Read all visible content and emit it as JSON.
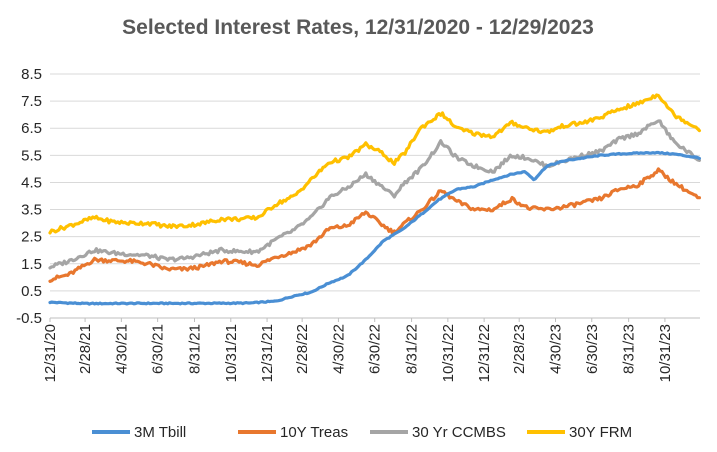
{
  "colors": {
    "3M Tbill": "#4a8fd4",
    "10Y Treas": "#e8772e",
    "30 Yr CCMBS": "#a5a5a5",
    "30Y FRM": "#ffc000"
  },
  "chart_data": {
    "type": "line",
    "title": "Selected Interest Rates, 12/31/2020 - 12/29/2023",
    "xlabel": "",
    "ylabel": "",
    "ylim": [
      -0.5,
      8.5
    ],
    "yticks": [
      "8.5",
      "7.5",
      "6.5",
      "5.5",
      "4.5",
      "3.5",
      "2.5",
      "1.5",
      "0.5",
      "-0.5"
    ],
    "xticks": [
      "12/31/20",
      "2/28/21",
      "4/30/21",
      "6/30/21",
      "8/31/21",
      "10/31/21",
      "12/31/21",
      "2/28/22",
      "4/30/22",
      "6/30/22",
      "8/31/22",
      "10/31/22",
      "12/31/22",
      "2/28/23",
      "4/30/23",
      "6/30/23",
      "8/31/23",
      "10/31/23"
    ],
    "x_range": [
      "2020-12-31",
      "2023-12-29"
    ],
    "grid": true,
    "legend": "bottom",
    "series": [
      {
        "name": "3M Tbill",
        "points": [
          [
            "2020-12-31",
            0.08
          ],
          [
            "2021-03-01",
            0.03
          ],
          [
            "2021-06-01",
            0.04
          ],
          [
            "2021-09-01",
            0.04
          ],
          [
            "2021-12-01",
            0.05
          ],
          [
            "2022-01-15",
            0.12
          ],
          [
            "2022-02-15",
            0.32
          ],
          [
            "2022-03-15",
            0.45
          ],
          [
            "2022-04-15",
            0.8
          ],
          [
            "2022-05-15",
            1.05
          ],
          [
            "2022-06-15",
            1.65
          ],
          [
            "2022-07-15",
            2.35
          ],
          [
            "2022-08-15",
            2.75
          ],
          [
            "2022-09-15",
            3.3
          ],
          [
            "2022-10-15",
            3.85
          ],
          [
            "2022-11-15",
            4.25
          ],
          [
            "2022-12-15",
            4.35
          ],
          [
            "2023-01-15",
            4.6
          ],
          [
            "2023-02-15",
            4.8
          ],
          [
            "2023-03-10",
            4.9
          ],
          [
            "2023-03-25",
            4.6
          ],
          [
            "2023-04-15",
            5.1
          ],
          [
            "2023-05-15",
            5.3
          ],
          [
            "2023-06-15",
            5.4
          ],
          [
            "2023-07-15",
            5.5
          ],
          [
            "2023-08-15",
            5.55
          ],
          [
            "2023-09-15",
            5.58
          ],
          [
            "2023-10-15",
            5.6
          ],
          [
            "2023-11-15",
            5.55
          ],
          [
            "2023-12-29",
            5.4
          ]
        ]
      },
      {
        "name": "10Y Treas",
        "points": [
          [
            "2020-12-31",
            0.92
          ],
          [
            "2021-02-01",
            1.1
          ],
          [
            "2021-03-15",
            1.65
          ],
          [
            "2021-04-15",
            1.62
          ],
          [
            "2021-05-15",
            1.6
          ],
          [
            "2021-06-15",
            1.5
          ],
          [
            "2021-07-15",
            1.3
          ],
          [
            "2021-08-15",
            1.3
          ],
          [
            "2021-09-15",
            1.4
          ],
          [
            "2021-10-15",
            1.6
          ],
          [
            "2021-11-15",
            1.55
          ],
          [
            "2021-12-15",
            1.45
          ],
          [
            "2022-01-15",
            1.75
          ],
          [
            "2022-02-15",
            1.95
          ],
          [
            "2022-03-15",
            2.2
          ],
          [
            "2022-04-15",
            2.8
          ],
          [
            "2022-05-15",
            2.9
          ],
          [
            "2022-06-15",
            3.4
          ],
          [
            "2022-07-15",
            2.9
          ],
          [
            "2022-08-01",
            2.65
          ],
          [
            "2022-08-20",
            3.0
          ],
          [
            "2022-09-15",
            3.45
          ],
          [
            "2022-10-20",
            4.2
          ],
          [
            "2022-11-15",
            3.8
          ],
          [
            "2022-12-15",
            3.5
          ],
          [
            "2023-01-15",
            3.5
          ],
          [
            "2023-02-15",
            3.9
          ],
          [
            "2023-03-15",
            3.55
          ],
          [
            "2023-04-15",
            3.5
          ],
          [
            "2023-05-15",
            3.6
          ],
          [
            "2023-06-15",
            3.75
          ],
          [
            "2023-07-15",
            3.9
          ],
          [
            "2023-08-15",
            4.25
          ],
          [
            "2023-09-15",
            4.4
          ],
          [
            "2023-10-20",
            4.95
          ],
          [
            "2023-11-15",
            4.5
          ],
          [
            "2023-12-29",
            3.88
          ]
        ]
      },
      {
        "name": "30 Yr CCMBS",
        "points": [
          [
            "2020-12-31",
            1.38
          ],
          [
            "2021-02-01",
            1.6
          ],
          [
            "2021-03-15",
            2.0
          ],
          [
            "2021-04-15",
            1.9
          ],
          [
            "2021-05-15",
            1.85
          ],
          [
            "2021-06-15",
            1.8
          ],
          [
            "2021-07-15",
            1.65
          ],
          [
            "2021-08-15",
            1.7
          ],
          [
            "2021-09-15",
            1.85
          ],
          [
            "2021-10-15",
            2.0
          ],
          [
            "2021-11-15",
            1.95
          ],
          [
            "2021-12-15",
            1.95
          ],
          [
            "2022-01-15",
            2.4
          ],
          [
            "2022-02-15",
            2.75
          ],
          [
            "2022-03-15",
            3.2
          ],
          [
            "2022-04-15",
            3.95
          ],
          [
            "2022-05-15",
            4.3
          ],
          [
            "2022-06-15",
            4.8
          ],
          [
            "2022-07-15",
            4.3
          ],
          [
            "2022-08-01",
            4.0
          ],
          [
            "2022-08-20",
            4.5
          ],
          [
            "2022-09-15",
            5.0
          ],
          [
            "2022-10-20",
            6.0
          ],
          [
            "2022-11-15",
            5.4
          ],
          [
            "2022-12-15",
            5.1
          ],
          [
            "2023-01-15",
            4.9
          ],
          [
            "2023-02-15",
            5.5
          ],
          [
            "2023-03-15",
            5.4
          ],
          [
            "2023-04-15",
            5.1
          ],
          [
            "2023-05-15",
            5.3
          ],
          [
            "2023-06-15",
            5.5
          ],
          [
            "2023-07-15",
            5.65
          ],
          [
            "2023-08-15",
            6.1
          ],
          [
            "2023-09-15",
            6.3
          ],
          [
            "2023-10-20",
            6.8
          ],
          [
            "2023-11-15",
            6.0
          ],
          [
            "2023-12-29",
            5.3
          ]
        ]
      },
      {
        "name": "30Y FRM",
        "points": [
          [
            "2020-12-31",
            2.68
          ],
          [
            "2021-02-01",
            2.9
          ],
          [
            "2021-03-15",
            3.2
          ],
          [
            "2021-04-15",
            3.05
          ],
          [
            "2021-05-15",
            3.0
          ],
          [
            "2021-06-15",
            3.0
          ],
          [
            "2021-07-15",
            2.88
          ],
          [
            "2021-08-15",
            2.9
          ],
          [
            "2021-09-15",
            3.0
          ],
          [
            "2021-10-15",
            3.15
          ],
          [
            "2021-11-15",
            3.15
          ],
          [
            "2021-12-15",
            3.2
          ],
          [
            "2022-01-15",
            3.7
          ],
          [
            "2022-02-15",
            4.0
          ],
          [
            "2022-03-15",
            4.6
          ],
          [
            "2022-04-15",
            5.25
          ],
          [
            "2022-05-15",
            5.4
          ],
          [
            "2022-06-15",
            5.9
          ],
          [
            "2022-07-15",
            5.55
          ],
          [
            "2022-08-01",
            5.2
          ],
          [
            "2022-08-20",
            5.6
          ],
          [
            "2022-09-15",
            6.5
          ],
          [
            "2022-10-20",
            7.05
          ],
          [
            "2022-11-15",
            6.5
          ],
          [
            "2022-12-15",
            6.3
          ],
          [
            "2023-01-15",
            6.2
          ],
          [
            "2023-02-15",
            6.7
          ],
          [
            "2023-03-15",
            6.5
          ],
          [
            "2023-04-15",
            6.35
          ],
          [
            "2023-05-15",
            6.6
          ],
          [
            "2023-06-15",
            6.7
          ],
          [
            "2023-07-15",
            6.9
          ],
          [
            "2023-08-15",
            7.2
          ],
          [
            "2023-09-15",
            7.4
          ],
          [
            "2023-10-20",
            7.75
          ],
          [
            "2023-11-15",
            7.0
          ],
          [
            "2023-12-29",
            6.45
          ]
        ]
      }
    ]
  }
}
